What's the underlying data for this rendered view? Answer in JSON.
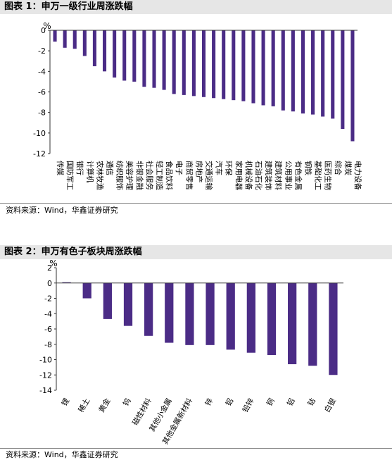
{
  "charts": [
    {
      "title": "图表 1：申万一级行业周涨跌幅",
      "source": "资料来源：Wind，华鑫证券研究",
      "unit": "%",
      "bar_color": "#4b2c86"
    },
    {
      "title": "图表 2：申万有色子板块周涨跌幅",
      "source": "资料来源：Wind，华鑫证券研究",
      "unit": "%",
      "bar_color": "#4b2c86"
    }
  ],
  "chart_data": [
    {
      "type": "bar",
      "title": "图表 1：申万一级行业周涨跌幅",
      "ylabel": "%",
      "ylim": [
        -12,
        0
      ],
      "yticks": [
        0,
        -2,
        -4,
        -6,
        -8,
        -10,
        -12
      ],
      "categories": [
        "传媒",
        "国防军工",
        "银行",
        "计算机",
        "农林牧渔",
        "通信",
        "纺织服饰",
        "美容护理",
        "非银金融",
        "社会服务",
        "轻工制造",
        "食品饮料",
        "电子",
        "商贸零售",
        "房地产",
        "交通运输",
        "汽车",
        "环保",
        "家用电器",
        "机械设备",
        "石油石化",
        "建筑装饰",
        "建筑材料",
        "公用事业",
        "有色金属",
        "钢铁",
        "基础化工",
        "医药生物",
        "综合",
        "煤炭",
        "电力设备"
      ],
      "values": [
        -1.1,
        -1.7,
        -1.8,
        -2.5,
        -3.5,
        -4.0,
        -4.6,
        -4.9,
        -5.0,
        -5.5,
        -5.6,
        -5.8,
        -6.2,
        -6.3,
        -6.4,
        -6.5,
        -6.6,
        -6.7,
        -6.8,
        -6.9,
        -7.1,
        -7.3,
        -7.4,
        -7.8,
        -7.9,
        -8.1,
        -8.2,
        -8.4,
        -8.6,
        -9.6,
        -10.8
      ]
    },
    {
      "type": "bar",
      "title": "图表 2：申万有色子板块周涨跌幅",
      "ylabel": "%",
      "ylim": [
        -14,
        2
      ],
      "yticks": [
        2,
        0,
        -2,
        -4,
        -6,
        -8,
        -10,
        -12,
        -14
      ],
      "categories": [
        "锂",
        "稀土",
        "黄金",
        "钨",
        "磁性材料",
        "其他小金属",
        "其他金属新材料",
        "锌",
        "铝",
        "铅锌",
        "铜",
        "铝",
        "钴",
        "白银"
      ],
      "values": [
        0.1,
        -2.0,
        -4.7,
        -5.6,
        -6.9,
        -7.8,
        -8.1,
        -8.1,
        -8.7,
        -9.1,
        -9.4,
        -10.6,
        -10.8,
        -12.0
      ]
    }
  ]
}
